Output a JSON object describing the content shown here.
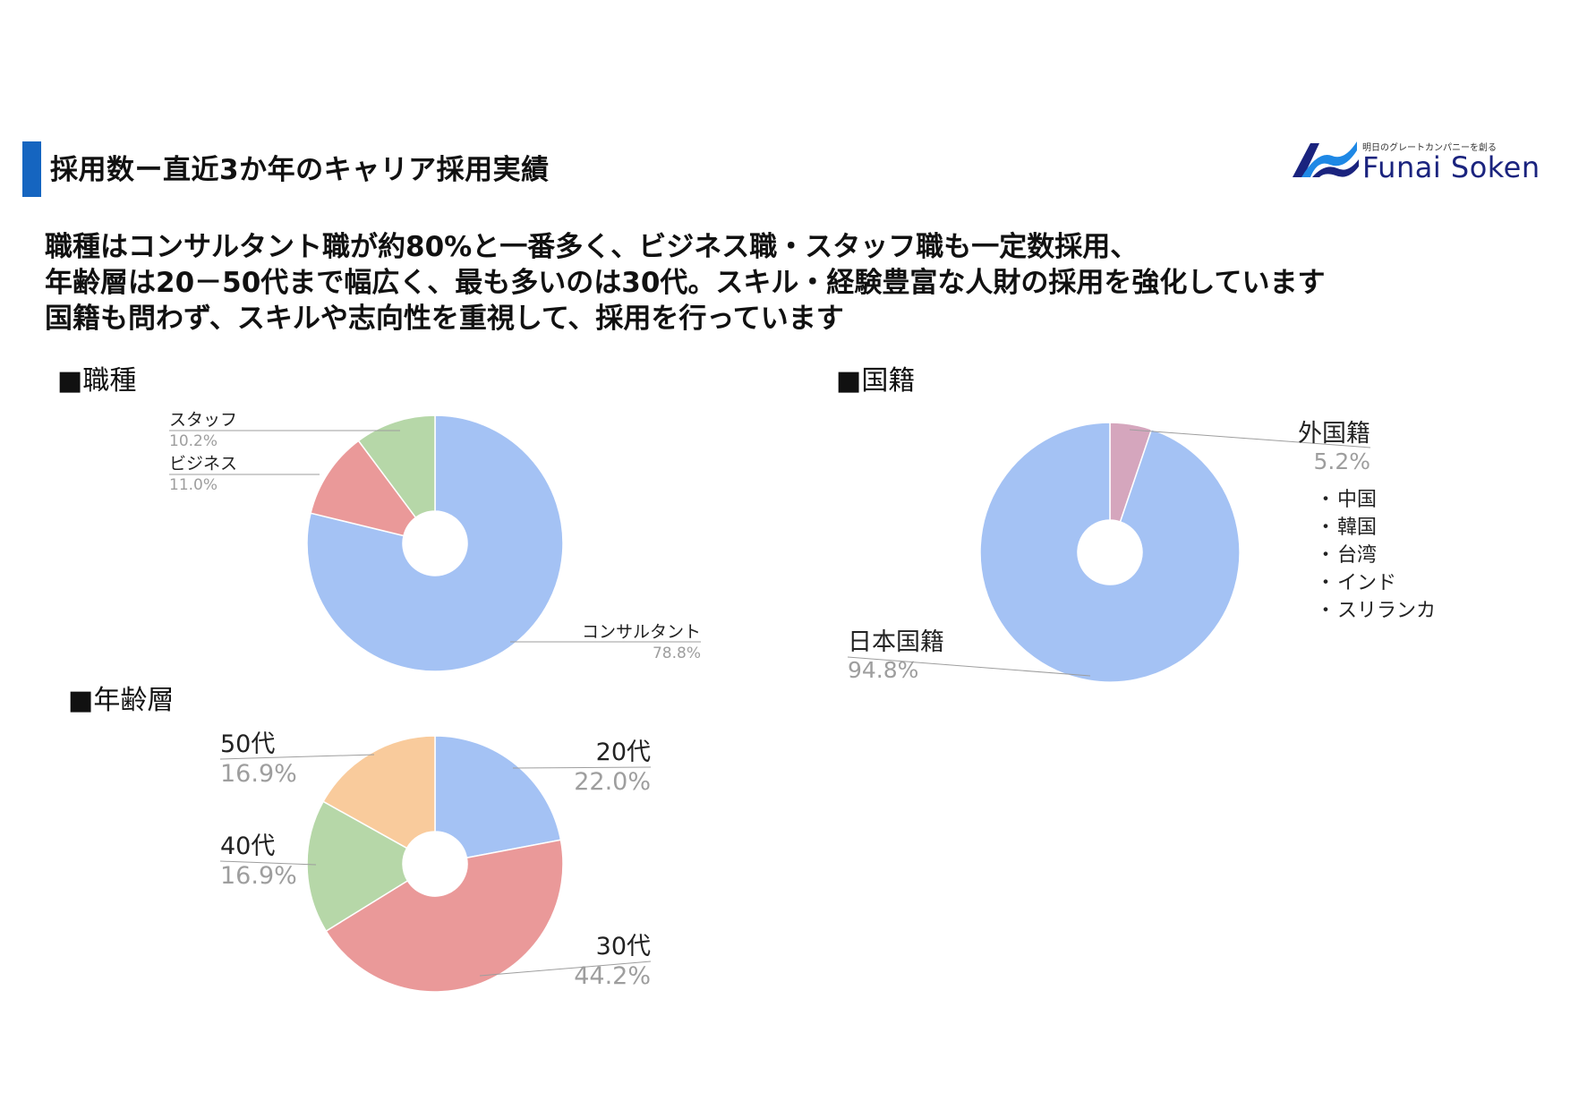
{
  "header": {
    "title": "採用数ー直近3か年のキャリア採用実績",
    "logo_tagline": "明日のグレートカンパニーを創る",
    "logo_name": "Funai Soken",
    "accent_color": "#1565c0"
  },
  "summary": [
    "職種はコンサルタント職が約80%と一番多く、ビジネス職・スタッフ職も一定数採用、",
    "年齢層は20－50代まで幅広く、最も多いのは30代。スキル・経験豊富な人財の採用を強化しています",
    "国籍も問わず、スキルや志向性を重視して、採用を行っています"
  ],
  "sections": {
    "job": "■職種",
    "nationality": "■国籍",
    "age": "■年齢層"
  },
  "nationality_list": [
    "中国",
    "韓国",
    "台湾",
    "インド",
    "スリランカ"
  ],
  "chart_data": [
    {
      "id": "job",
      "type": "pie",
      "donut": true,
      "categories": [
        "コンサルタント",
        "ビジネス",
        "スタッフ"
      ],
      "values": [
        78.8,
        11.0,
        10.2
      ],
      "labels": [
        "78.8%",
        "11.0%",
        "10.2%"
      ],
      "colors": [
        "#a4c2f4",
        "#ea9999",
        "#b6d7a8"
      ]
    },
    {
      "id": "nationality",
      "type": "pie",
      "donut": true,
      "categories": [
        "外国籍",
        "日本国籍"
      ],
      "values": [
        5.2,
        94.8
      ],
      "labels": [
        "5.2%",
        "94.8%"
      ],
      "colors": [
        "#d5a6bd",
        "#a4c2f4"
      ]
    },
    {
      "id": "age",
      "type": "pie",
      "donut": true,
      "categories": [
        "20代",
        "30代",
        "40代",
        "50代"
      ],
      "values": [
        22.0,
        44.2,
        16.9,
        16.9
      ],
      "labels": [
        "22.0%",
        "44.2%",
        "16.9%",
        "16.9%"
      ],
      "colors": [
        "#a4c2f4",
        "#ea9999",
        "#b6d7a8",
        "#f9cb9c"
      ]
    }
  ]
}
